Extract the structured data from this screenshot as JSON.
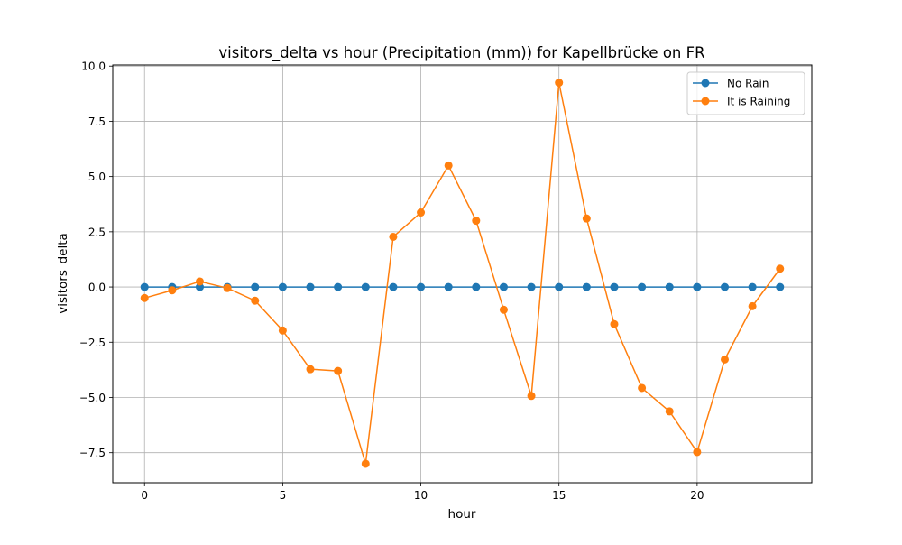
{
  "chart_data": {
    "type": "line",
    "title": "visitors_delta vs hour (Precipitation (mm)) for Kapellbrücke on FR",
    "xlabel": "hour",
    "ylabel": "visitors_delta",
    "xlim": [
      -1.15,
      24.15
    ],
    "ylim": [
      -8.86,
      10.05
    ],
    "xticks": [
      0,
      5,
      10,
      15,
      20
    ],
    "xtick_labels": [
      "0",
      "5",
      "10",
      "15",
      "20"
    ],
    "yticks": [
      -7.5,
      -5.0,
      -2.5,
      0.0,
      2.5,
      5.0,
      7.5,
      10.0
    ],
    "ytick_labels": [
      "−7.5",
      "−5.0",
      "−2.5",
      "0.0",
      "2.5",
      "5.0",
      "7.5",
      "10.0"
    ],
    "grid": true,
    "legend_position": "top-right",
    "x": [
      0,
      1,
      2,
      3,
      4,
      5,
      6,
      7,
      8,
      9,
      10,
      11,
      12,
      13,
      14,
      15,
      16,
      17,
      18,
      19,
      20,
      21,
      22,
      23
    ],
    "series": [
      {
        "name": "No Rain",
        "color": "#1f77b4",
        "values": [
          0,
          0,
          0,
          0,
          0,
          0,
          0,
          0,
          0,
          0,
          0,
          0,
          0,
          0,
          0,
          0,
          0,
          0,
          0,
          0,
          0,
          0,
          0,
          0
        ]
      },
      {
        "name": "It is Raining",
        "color": "#ff7f0e",
        "values": [
          -0.5,
          -0.15,
          0.25,
          -0.05,
          -0.62,
          -1.97,
          -3.72,
          -3.8,
          -8.0,
          2.27,
          3.37,
          5.5,
          3.0,
          -1.03,
          -4.93,
          9.25,
          3.1,
          -1.68,
          -4.57,
          -5.63,
          -7.47,
          -3.28,
          -0.87,
          0.83
        ]
      }
    ]
  }
}
